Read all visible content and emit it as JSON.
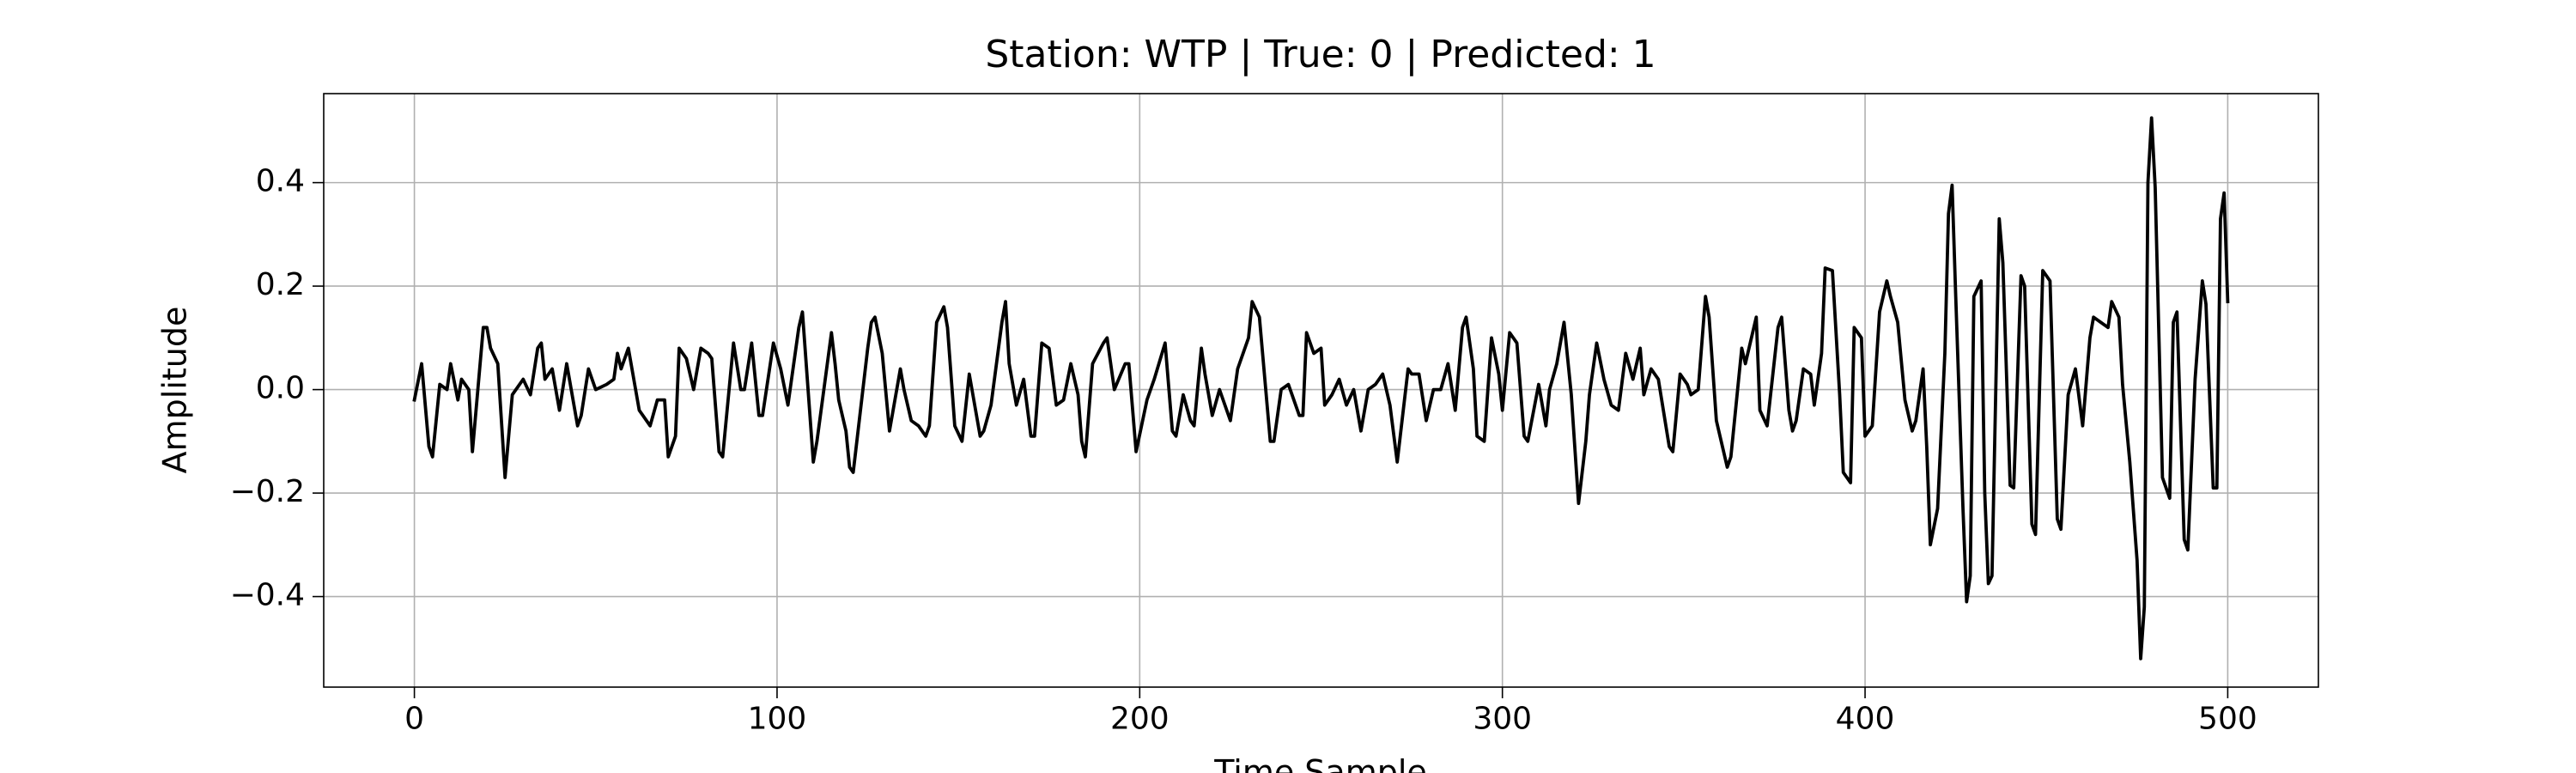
{
  "chart_data": {
    "type": "line",
    "title": "Station: WTP | True: 0 | Predicted: 1",
    "x_label": "Time Sample",
    "y_label": "Amplitude",
    "xlim": [
      -25,
      525
    ],
    "ylim": [
      -0.575,
      0.572
    ],
    "xticks": [
      0,
      100,
      200,
      300,
      400,
      500
    ],
    "yticks": [
      {
        "value": -0.4,
        "label": "−0.4"
      },
      {
        "value": -0.2,
        "label": "−0.2"
      },
      {
        "value": 0,
        "label": "0.0"
      },
      {
        "value": 0.2,
        "label": "0.2"
      },
      {
        "value": 0.4,
        "label": "0.4"
      }
    ],
    "grid": true,
    "series": [
      {
        "color": "#000000",
        "x": [
          0,
          2,
          4,
          5,
          7,
          9,
          10,
          12,
          13,
          15,
          16,
          19,
          20,
          21,
          23,
          25,
          27,
          30,
          32,
          34,
          35,
          36,
          38,
          40,
          42,
          45,
          46,
          48,
          50,
          53,
          55,
          56,
          57,
          59,
          62,
          63,
          65,
          67,
          69,
          70,
          72,
          73,
          75,
          77,
          79,
          81,
          82,
          84,
          85,
          88,
          90,
          91,
          93,
          95,
          96,
          99,
          101,
          103,
          106,
          107,
          110,
          111,
          115,
          116,
          117,
          119,
          120,
          121,
          125,
          126,
          127,
          129,
          131,
          132,
          134,
          135,
          137,
          139,
          141,
          142,
          144,
          146,
          147,
          149,
          151,
          153,
          156,
          157,
          159,
          162,
          163,
          164,
          166,
          168,
          170,
          171,
          173,
          175,
          177,
          179,
          181,
          183,
          184,
          185,
          187,
          190,
          191,
          193,
          196,
          197,
          199,
          202,
          204,
          207,
          209,
          210,
          212,
          214,
          215,
          217,
          218,
          220,
          222,
          225,
          227,
          230,
          231,
          233,
          236,
          237,
          239,
          241,
          242,
          244,
          245,
          246,
          248,
          250,
          251,
          253,
          255,
          257,
          259,
          261,
          263,
          265,
          267,
          269,
          271,
          274,
          275,
          277,
          279,
          281,
          283,
          285,
          287,
          289,
          290,
          292,
          293,
          295,
          297,
          299,
          300,
          302,
          304,
          306,
          307,
          310,
          312,
          313,
          315,
          317,
          319,
          321,
          323,
          324,
          326,
          328,
          330,
          332,
          334,
          336,
          338,
          339,
          341,
          343,
          346,
          347,
          349,
          351,
          352,
          354,
          356,
          357,
          359,
          362,
          363,
          366,
          367,
          370,
          371,
          373,
          376,
          377,
          379,
          380,
          381,
          383,
          385,
          386,
          388,
          389,
          391,
          393,
          394,
          396,
          397,
          399,
          400,
          402,
          404,
          406,
          407,
          409,
          411,
          413,
          414,
          416,
          417,
          418,
          420,
          422,
          423,
          424,
          425,
          427,
          428,
          429,
          430,
          432,
          433,
          434,
          435,
          437,
          438,
          440,
          441,
          443,
          444,
          446,
          447,
          449,
          451,
          453,
          454,
          456,
          458,
          460,
          462,
          463,
          465,
          467,
          468,
          470,
          471,
          473,
          475,
          476,
          477,
          478,
          479,
          480,
          482,
          484,
          485,
          486,
          488,
          489,
          491,
          493,
          494,
          496,
          497,
          498,
          499,
          500
        ],
        "values": [
          -0.02,
          0.05,
          -0.11,
          -0.13,
          0.01,
          0.0,
          0.05,
          -0.02,
          0.02,
          0.0,
          -0.12,
          0.12,
          0.12,
          0.08,
          0.05,
          -0.17,
          -0.01,
          0.02,
          -0.01,
          0.08,
          0.09,
          0.02,
          0.04,
          -0.04,
          0.05,
          -0.07,
          -0.05,
          0.04,
          0.0,
          0.01,
          0.02,
          0.07,
          0.04,
          0.08,
          -0.04,
          -0.05,
          -0.07,
          -0.02,
          -0.02,
          -0.13,
          -0.09,
          0.08,
          0.06,
          0.0,
          0.08,
          0.07,
          0.06,
          -0.12,
          -0.13,
          0.09,
          0.0,
          0.0,
          0.09,
          -0.05,
          -0.05,
          0.09,
          0.04,
          -0.03,
          0.12,
          0.15,
          -0.14,
          -0.1,
          0.11,
          0.05,
          -0.02,
          -0.08,
          -0.15,
          -0.16,
          0.08,
          0.13,
          0.14,
          0.07,
          -0.08,
          -0.04,
          0.04,
          0.0,
          -0.06,
          -0.07,
          -0.09,
          -0.07,
          0.13,
          0.16,
          0.12,
          -0.07,
          -0.1,
          0.03,
          -0.09,
          -0.08,
          -0.03,
          0.13,
          0.17,
          0.05,
          -0.03,
          0.02,
          -0.09,
          -0.09,
          0.09,
          0.08,
          -0.03,
          -0.02,
          0.05,
          -0.01,
          -0.1,
          -0.13,
          0.05,
          0.09,
          0.1,
          0.0,
          0.05,
          0.05,
          -0.12,
          -0.02,
          0.02,
          0.09,
          -0.08,
          -0.09,
          -0.01,
          -0.06,
          -0.07,
          0.08,
          0.03,
          -0.05,
          0.0,
          -0.06,
          0.04,
          0.1,
          0.17,
          0.14,
          -0.1,
          -0.1,
          0.0,
          0.01,
          -0.01,
          -0.05,
          -0.05,
          0.11,
          0.07,
          0.08,
          -0.03,
          -0.01,
          0.02,
          -0.03,
          0.0,
          -0.08,
          0.0,
          0.01,
          0.03,
          -0.03,
          -0.14,
          0.04,
          0.03,
          0.03,
          -0.06,
          0.0,
          0.0,
          0.05,
          -0.04,
          0.12,
          0.14,
          0.04,
          -0.09,
          -0.1,
          0.1,
          0.03,
          -0.04,
          0.11,
          0.09,
          -0.09,
          -0.1,
          0.01,
          -0.07,
          0.0,
          0.05,
          0.13,
          -0.01,
          -0.22,
          -0.1,
          -0.01,
          0.09,
          0.02,
          -0.03,
          -0.04,
          0.07,
          0.02,
          0.08,
          -0.01,
          0.04,
          0.02,
          -0.11,
          -0.12,
          0.03,
          0.01,
          -0.01,
          0.0,
          0.18,
          0.14,
          -0.06,
          -0.15,
          -0.13,
          0.08,
          0.05,
          0.14,
          -0.04,
          -0.07,
          0.12,
          0.14,
          -0.04,
          -0.08,
          -0.06,
          0.04,
          0.03,
          -0.03,
          0.07,
          0.235,
          0.23,
          -0.01,
          -0.16,
          -0.18,
          0.12,
          0.1,
          -0.09,
          -0.07,
          0.15,
          0.21,
          0.18,
          0.13,
          -0.02,
          -0.08,
          -0.06,
          0.04,
          -0.11,
          -0.3,
          -0.23,
          0.07,
          0.34,
          0.395,
          0.18,
          -0.23,
          -0.41,
          -0.36,
          0.18,
          0.21,
          -0.2,
          -0.375,
          -0.36,
          0.33,
          0.245,
          -0.185,
          -0.19,
          0.22,
          0.2,
          -0.26,
          -0.28,
          0.23,
          0.21,
          -0.25,
          -0.27,
          -0.01,
          0.04,
          -0.07,
          0.1,
          0.14,
          0.13,
          0.12,
          0.17,
          0.14,
          0.01,
          -0.14,
          -0.33,
          -0.52,
          -0.42,
          0.4,
          0.525,
          0.39,
          -0.17,
          -0.21,
          0.13,
          0.15,
          -0.29,
          -0.31,
          0.02,
          0.21,
          0.165,
          -0.19,
          -0.19,
          0.33,
          0.38,
          0.17
        ]
      }
    ]
  }
}
